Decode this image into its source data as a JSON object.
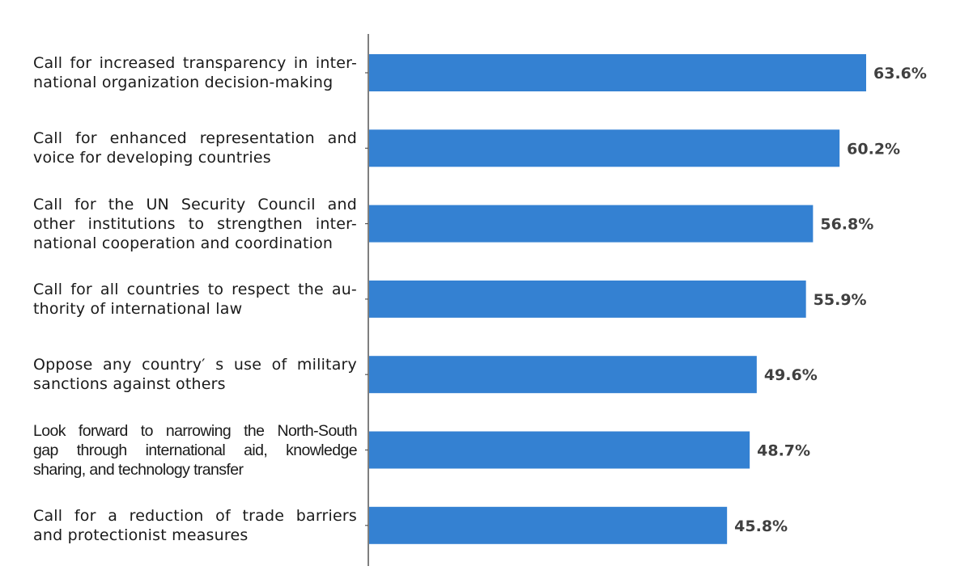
{
  "chart_data": {
    "type": "bar",
    "orientation": "horizontal",
    "title": "",
    "xlabel": "",
    "ylabel": "",
    "xlim": [
      0,
      63.6
    ],
    "grid": false,
    "legend": "none",
    "bar_color": "#3481d2",
    "value_label_color": "#404040",
    "axis_color": "#555555",
    "categories": [
      {
        "lines": [
          "Call for increased transparency in inter-",
          "national organization decision-making"
        ],
        "value": 63.6,
        "value_label": "63.6%"
      },
      {
        "lines": [
          "Call for enhanced representation and",
          "voice for developing countries"
        ],
        "value": 60.2,
        "value_label": "60.2%"
      },
      {
        "lines": [
          "Call for the UN Security Council and",
          "other institutions to strengthen inter-",
          "national cooperation and coordination"
        ],
        "value": 56.8,
        "value_label": "56.8%"
      },
      {
        "lines": [
          "Call for all countries to respect the au-",
          "thority of international law"
        ],
        "value": 55.9,
        "value_label": "55.9%"
      },
      {
        "lines": [
          "Oppose any country′  s use of military",
          "sanctions against others"
        ],
        "value": 49.6,
        "value_label": "49.6%"
      },
      {
        "lines": [
          "Look forward to narrowing the North-South",
          "gap through international aid, knowledge",
          "sharing, and technology transfer"
        ],
        "value": 48.7,
        "value_label": "48.7%"
      },
      {
        "lines": [
          "Call for a reduction of trade barriers",
          "and protectionist measures"
        ],
        "value": 45.8,
        "value_label": "45.8%"
      }
    ]
  }
}
